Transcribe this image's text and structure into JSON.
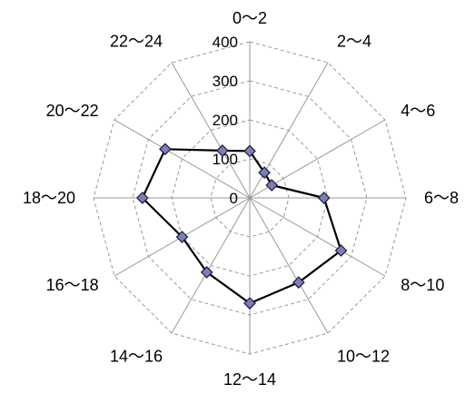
{
  "chart_data": {
    "type": "radar",
    "categories": [
      "0～2",
      "2～4",
      "4～6",
      "6～8",
      "8～10",
      "10～12",
      "12～14",
      "14～16",
      "16～18",
      "18～20",
      "20～22",
      "22～24"
    ],
    "series": [
      {
        "values": [
          120,
          75,
          65,
          190,
          270,
          250,
          270,
          220,
          200,
          275,
          250,
          140
        ]
      }
    ],
    "ticks": [
      0,
      100,
      200,
      300,
      400
    ],
    "rlim": [
      0,
      400
    ],
    "grid": true,
    "legend": "none",
    "colors": {
      "line": "#000000",
      "marker_fill": "#7b7fb4",
      "marker_stroke": "#1a1a40",
      "spoke": "#999999",
      "grid": "#999999"
    }
  }
}
